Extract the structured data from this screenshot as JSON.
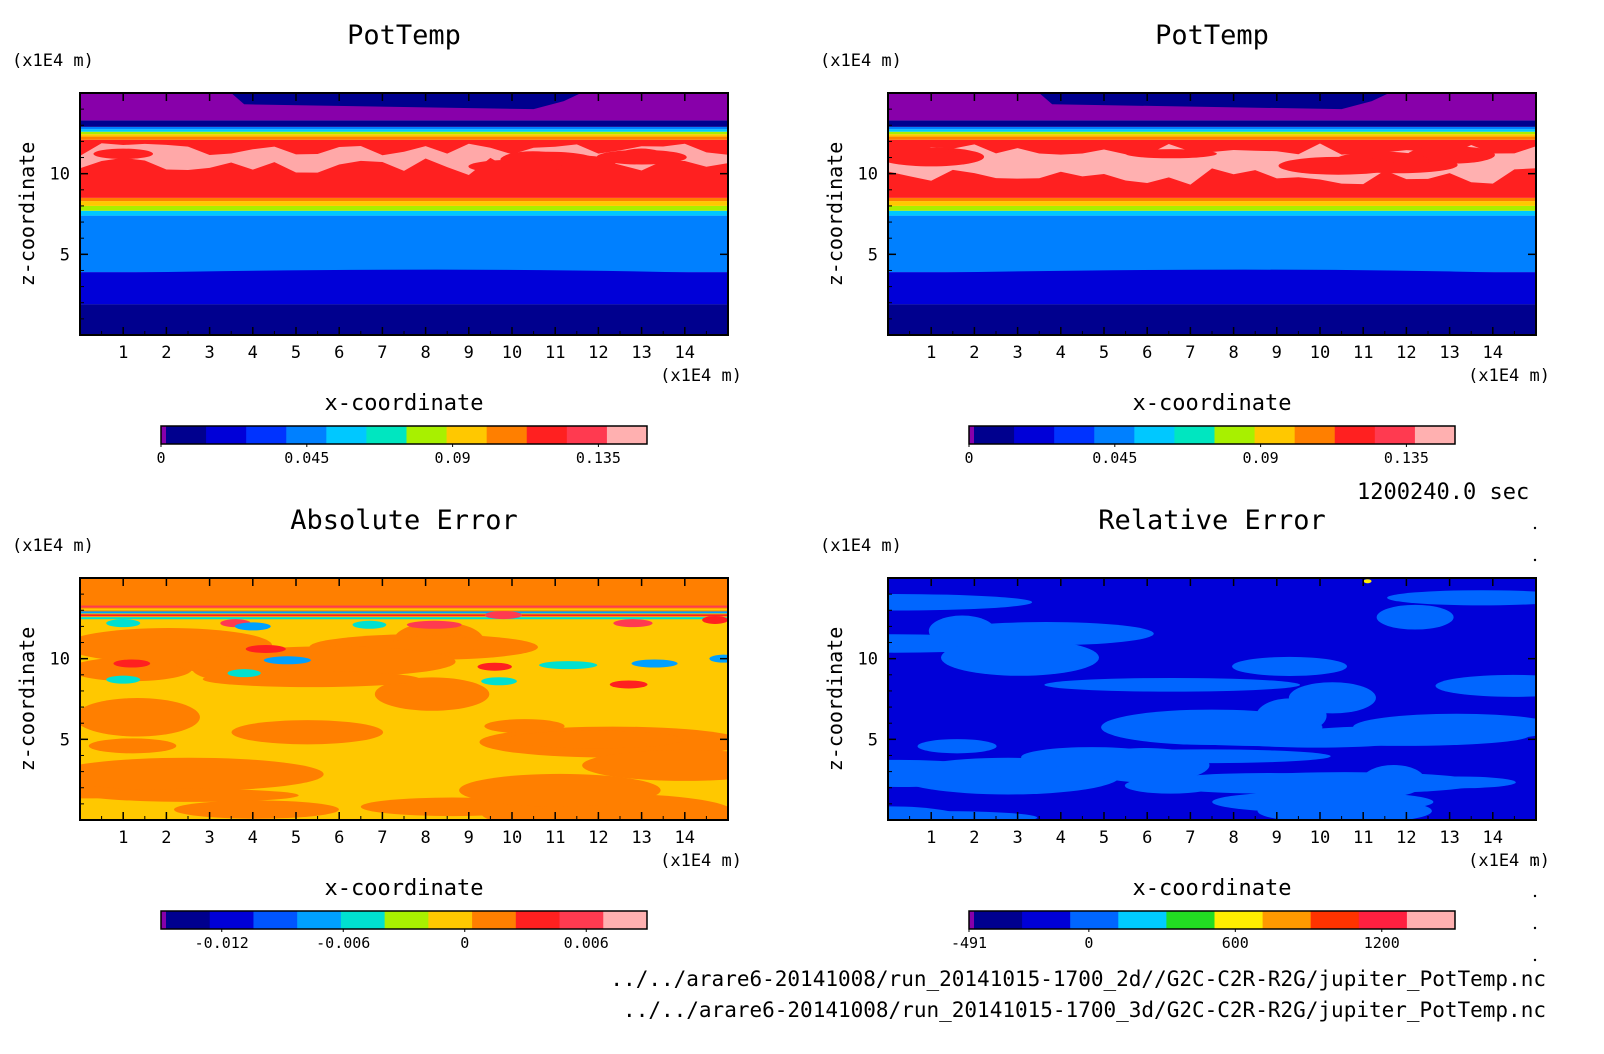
{
  "chart_data": [
    {
      "type": "heatmap",
      "title": "PotTemp",
      "xlabel": "x-coordinate",
      "ylabel": "z-coordinate",
      "x_unit": "(x1E4 m)",
      "y_unit": "(x1E4 m)",
      "xlim": [
        0,
        15
      ],
      "ylim": [
        0,
        15
      ],
      "x_ticks": [
        "1",
        "2",
        "3",
        "4",
        "5",
        "6",
        "7",
        "8",
        "9",
        "10",
        "11",
        "12",
        "13",
        "14"
      ],
      "y_ticks": [
        "5",
        "10"
      ],
      "colorbar": {
        "min": 0,
        "max": 0.15,
        "tick_labels": [
          "0",
          "0.045",
          "0.09",
          "0.135"
        ],
        "colors": [
          "#8800aa",
          "#00008e",
          "#0000d8",
          "#0033ff",
          "#0080ff",
          "#00c8ff",
          "#00e6c0",
          "#a8f000",
          "#ffc800",
          "#ff7f00",
          "#ff2020",
          "#ff3a50",
          "#ffb0b0"
        ]
      },
      "fields": [
        {
          "z_from": 0,
          "z_to": 1.8,
          "class": "deep-blue"
        },
        {
          "z_from": 1.8,
          "z_to": 3.9,
          "class": "blue"
        },
        {
          "z_from": 3.9,
          "z_to": 7.4,
          "class": "mid-blue"
        },
        {
          "z_from": 7.4,
          "z_to": 8.4,
          "class": "gradient"
        },
        {
          "z_from": 8.4,
          "z_to": 12.3,
          "class": "red"
        },
        {
          "z_from": 12.3,
          "z_to": 13.2,
          "class": "gradient"
        },
        {
          "z_from": 13.2,
          "z_to": 15,
          "class": "purple"
        }
      ]
    },
    {
      "type": "heatmap",
      "title": "PotTemp",
      "xlabel": "x-coordinate",
      "ylabel": "z-coordinate",
      "x_unit": "(x1E4 m)",
      "y_unit": "(x1E4 m)",
      "xlim": [
        0,
        15
      ],
      "ylim": [
        0,
        15
      ],
      "x_ticks": [
        "1",
        "2",
        "3",
        "4",
        "5",
        "6",
        "7",
        "8",
        "9",
        "10",
        "11",
        "12",
        "13",
        "14"
      ],
      "y_ticks": [
        "5",
        "10"
      ],
      "colorbar": {
        "min": 0,
        "max": 0.15,
        "tick_labels": [
          "0",
          "0.045",
          "0.09",
          "0.135"
        ],
        "colors": [
          "#8800aa",
          "#00008e",
          "#0000d8",
          "#0033ff",
          "#0080ff",
          "#00c8ff",
          "#00e6c0",
          "#a8f000",
          "#ffc800",
          "#ff7f00",
          "#ff2020",
          "#ff3a50",
          "#ffb0b0"
        ]
      }
    },
    {
      "type": "heatmap",
      "title": "Absolute Error",
      "xlabel": "x-coordinate",
      "ylabel": "z-coordinate",
      "x_unit": "(x1E4 m)",
      "y_unit": "(x1E4 m)",
      "xlim": [
        0,
        15
      ],
      "ylim": [
        0,
        15
      ],
      "x_ticks": [
        "1",
        "2",
        "3",
        "4",
        "5",
        "6",
        "7",
        "8",
        "9",
        "10",
        "11",
        "12",
        "13",
        "14"
      ],
      "y_ticks": [
        "5",
        "10"
      ],
      "colorbar": {
        "min": -0.015,
        "max": 0.009,
        "tick_labels": [
          "-0.012",
          "-0.006",
          "0",
          "0.006"
        ],
        "colors": [
          "#8800aa",
          "#00008e",
          "#0000d8",
          "#0055ff",
          "#00a0ff",
          "#00e0d0",
          "#a8f000",
          "#ffc800",
          "#ff7f00",
          "#ff2020",
          "#ff3a50",
          "#ffb0b0"
        ]
      }
    },
    {
      "type": "heatmap",
      "title": "Relative Error",
      "xlabel": "x-coordinate",
      "ylabel": "z-coordinate",
      "x_unit": "(x1E4 m)",
      "y_unit": "(x1E4 m)",
      "xlim": [
        0,
        15
      ],
      "ylim": [
        0,
        15
      ],
      "x_ticks": [
        "1",
        "2",
        "3",
        "4",
        "5",
        "6",
        "7",
        "8",
        "9",
        "10",
        "11",
        "12",
        "13",
        "14"
      ],
      "y_ticks": [
        "5",
        "10"
      ],
      "colorbar": {
        "min": -491,
        "max": 1500,
        "tick_labels": [
          "-491",
          "0",
          "600",
          "1200"
        ],
        "colors": [
          "#8800aa",
          "#00008e",
          "#0000d8",
          "#0066ff",
          "#00ccff",
          "#22dd22",
          "#ffee00",
          "#ff9900",
          "#ff3300",
          "#ff2040",
          "#ffb0b0"
        ]
      }
    }
  ],
  "annotations": {
    "time": "1200240.0 sec",
    "file_2d": "../../arare6-20141008/run_20141015-1700_2d//G2C-C2R-R2G/jupiter_PotTemp.nc",
    "file_3d": "../../arare6-20141008/run_20141015-1700_3d/G2C-C2R-R2G/jupiter_PotTemp.nc"
  }
}
